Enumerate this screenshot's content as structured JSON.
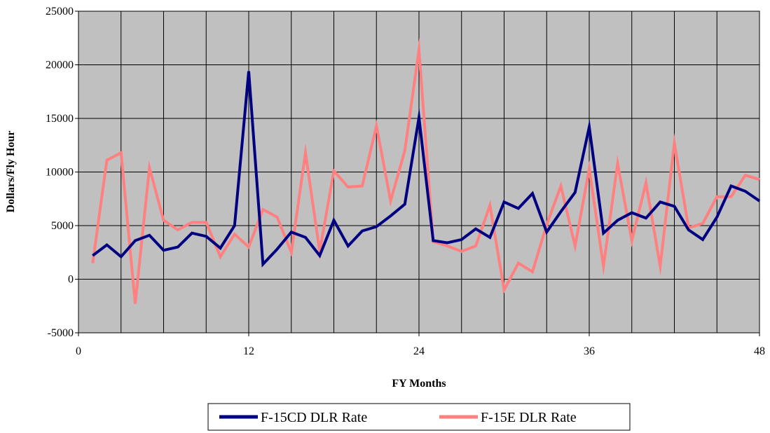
{
  "chart_data": {
    "type": "line",
    "title": "",
    "xlabel": "FY Months",
    "ylabel": "Dollars/Fly Hour",
    "xlim": [
      0,
      48
    ],
    "ylim": [
      -5000,
      25000
    ],
    "x_ticks": [
      0,
      12,
      24,
      36,
      48
    ],
    "y_ticks": [
      -5000,
      0,
      5000,
      10000,
      15000,
      20000,
      25000
    ],
    "grid": true,
    "plot_background": "#c0c0c0",
    "legend_position": "bottom",
    "series": [
      {
        "name": "F-15CD DLR Rate",
        "color": "#000080",
        "x": [
          1,
          2,
          3,
          4,
          5,
          6,
          7,
          8,
          9,
          10,
          11,
          12,
          13,
          14,
          15,
          16,
          17,
          18,
          19,
          20,
          21,
          22,
          23,
          24,
          25,
          26,
          27,
          28,
          29,
          30,
          31,
          32,
          33,
          34,
          35,
          36,
          37,
          38,
          39,
          40,
          41,
          42,
          43,
          44,
          45,
          46,
          47,
          48
        ],
        "values": [
          2200,
          3200,
          2100,
          3600,
          4100,
          2700,
          3000,
          4300,
          4000,
          2900,
          5000,
          19400,
          1400,
          2800,
          4400,
          3900,
          2200,
          5500,
          3100,
          4500,
          4900,
          5900,
          7000,
          15100,
          3600,
          3400,
          3700,
          4700,
          3900,
          7200,
          6600,
          8000,
          4400,
          6300,
          8100,
          14200,
          4300,
          5500,
          6200,
          5700,
          7200,
          6800,
          4600,
          3700,
          5800,
          8700,
          8200,
          7300
        ]
      },
      {
        "name": "F-15E DLR Rate",
        "color": "#ff8080",
        "x": [
          1,
          2,
          3,
          4,
          5,
          6,
          7,
          8,
          9,
          10,
          11,
          12,
          13,
          14,
          15,
          16,
          17,
          18,
          19,
          20,
          21,
          22,
          23,
          24,
          25,
          26,
          27,
          28,
          29,
          30,
          31,
          32,
          33,
          34,
          35,
          36,
          37,
          38,
          39,
          40,
          41,
          42,
          43,
          44,
          45,
          46,
          47,
          48
        ],
        "values": [
          1500,
          11100,
          11800,
          -2300,
          10400,
          5500,
          4600,
          5300,
          5300,
          2100,
          4200,
          3000,
          6500,
          5800,
          2500,
          11800,
          2600,
          10100,
          8600,
          8700,
          14300,
          7300,
          12000,
          21400,
          3500,
          3100,
          2600,
          3100,
          6900,
          -1000,
          1500,
          700,
          5100,
          8700,
          3100,
          10300,
          1200,
          10800,
          3600,
          9000,
          1200,
          12700,
          4800,
          5200,
          7700,
          7700,
          9700,
          9300
        ]
      }
    ]
  }
}
